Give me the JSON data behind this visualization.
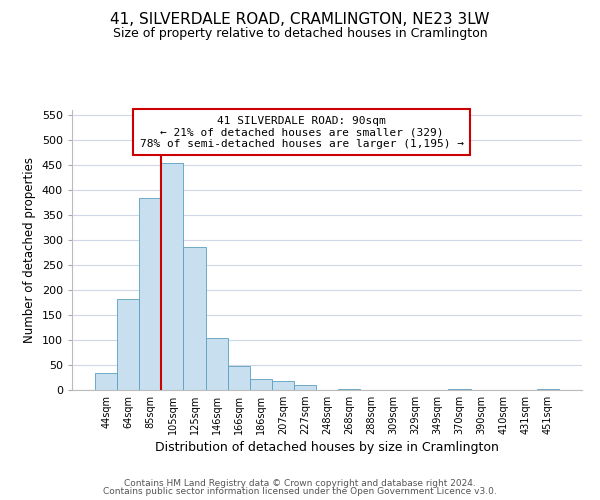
{
  "title": "41, SILVERDALE ROAD, CRAMLINGTON, NE23 3LW",
  "subtitle": "Size of property relative to detached houses in Cramlington",
  "xlabel": "Distribution of detached houses by size in Cramlington",
  "ylabel": "Number of detached properties",
  "bar_labels": [
    "44sqm",
    "64sqm",
    "85sqm",
    "105sqm",
    "125sqm",
    "146sqm",
    "166sqm",
    "186sqm",
    "207sqm",
    "227sqm",
    "248sqm",
    "268sqm",
    "288sqm",
    "309sqm",
    "329sqm",
    "349sqm",
    "370sqm",
    "390sqm",
    "410sqm",
    "431sqm",
    "451sqm"
  ],
  "bar_heights": [
    35,
    183,
    385,
    455,
    287,
    104,
    49,
    23,
    18,
    10,
    0,
    3,
    0,
    0,
    0,
    0,
    2,
    0,
    0,
    0,
    2
  ],
  "bar_color": "#c8dff0",
  "bar_edge_color": "#5a9fc0",
  "ylim": [
    0,
    560
  ],
  "yticks": [
    0,
    50,
    100,
    150,
    200,
    250,
    300,
    350,
    400,
    450,
    500,
    550
  ],
  "vline_color": "#cc0000",
  "vline_x": 2.5,
  "annotation_line1": "41 SILVERDALE ROAD: 90sqm",
  "annotation_line2": "← 21% of detached houses are smaller (329)",
  "annotation_line3": "78% of semi-detached houses are larger (1,195) →",
  "footer_line1": "Contains HM Land Registry data © Crown copyright and database right 2024.",
  "footer_line2": "Contains public sector information licensed under the Open Government Licence v3.0.",
  "background_color": "#ffffff",
  "grid_color": "#d0d8e8",
  "title_fontsize": 11,
  "subtitle_fontsize": 9
}
